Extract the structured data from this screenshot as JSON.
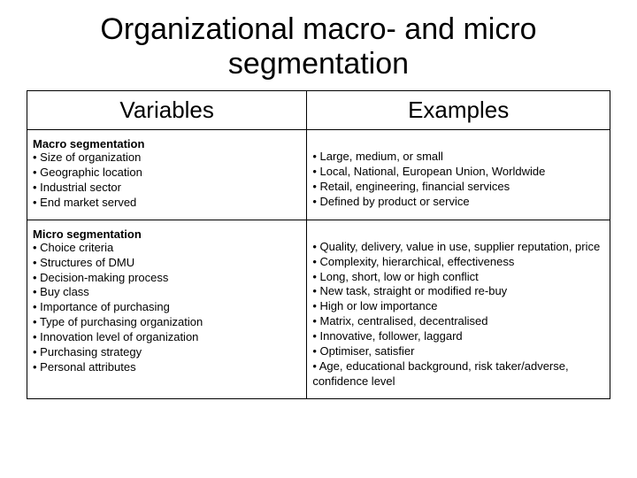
{
  "title": "Organizational macro- and micro segmentation",
  "headers": {
    "left": "Variables",
    "right": "Examples"
  },
  "macro": {
    "heading": "Macro segmentation",
    "vars": [
      "Size of organization",
      "Geographic location",
      "Industrial sector",
      "End market served"
    ],
    "examples": [
      "Large, medium, or small",
      "Local, National, European Union, Worldwide",
      "Retail, engineering, financial services",
      "Defined by product or service"
    ]
  },
  "micro": {
    "heading": "Micro segmentation",
    "vars": [
      "Choice criteria",
      "Structures of DMU",
      "Decision-making process",
      "Buy class",
      "Importance of purchasing",
      "Type of purchasing organization",
      "Innovation level of organization",
      "Purchasing strategy",
      "Personal attributes"
    ],
    "examples": [
      "Quality, delivery, value in use, supplier reputation, price",
      "Complexity, hierarchical, effectiveness",
      "Long, short, low or high conflict",
      "New task, straight or modified re-buy",
      "High or low importance",
      "Matrix, centralised, decentralised",
      "Innovative, follower, laggard",
      "Optimiser, satisfier",
      "Age, educational background, risk taker/adverse, confidence level"
    ]
  }
}
